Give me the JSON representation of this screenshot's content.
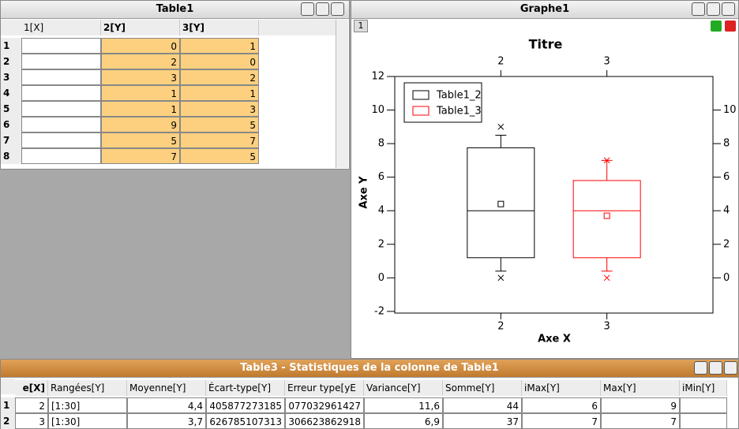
{
  "table1": {
    "title": "Table1",
    "columns": [
      "1[X]",
      "2[Y]",
      "3[Y]"
    ],
    "rows": [
      {
        "label": 1,
        "cells": [
          0,
          1
        ]
      },
      {
        "label": 2,
        "cells": [
          2,
          0
        ]
      },
      {
        "label": 3,
        "cells": [
          3,
          2
        ]
      },
      {
        "label": 4,
        "cells": [
          1,
          1
        ]
      },
      {
        "label": 5,
        "cells": [
          1,
          3
        ]
      },
      {
        "label": 6,
        "cells": [
          9,
          5
        ]
      },
      {
        "label": 7,
        "cells": [
          5,
          7
        ]
      },
      {
        "label": 8,
        "cells": [
          7,
          5
        ]
      }
    ]
  },
  "graph": {
    "title": "Graphe1",
    "tab": "1"
  },
  "chart_data": {
    "type": "box",
    "title": "Titre",
    "x_label": "Axe X",
    "y_label": "Axe Y",
    "x": [
      2,
      3
    ],
    "xlim": [
      1,
      4
    ],
    "xticks": [
      2,
      3
    ],
    "ylim": [
      -2.1,
      12
    ],
    "yticks": [
      -2,
      0,
      2,
      4,
      6,
      8,
      10,
      12
    ],
    "y2lim": [
      -2.1,
      12
    ],
    "y2ticks": [
      0,
      2,
      4,
      6,
      8,
      10
    ],
    "legend": "upper left",
    "series": [
      {
        "name": "Table1_2",
        "color": "#000000",
        "whisker_low": 0.4,
        "q1": 1.2,
        "median": 4,
        "q3": 7.75,
        "whisker_high": 8.5,
        "mean": 4.4,
        "outliers": [
          0,
          9
        ]
      },
      {
        "name": "Table1_3",
        "color": "#ff0000",
        "whisker_low": 0.4,
        "q1": 1.2,
        "median": 4,
        "q3": 5.8,
        "whisker_high": 7,
        "mean": 3.7,
        "outliers": [
          0,
          7
        ]
      }
    ]
  },
  "table3": {
    "title": "Table3 - Statistiques de la colonne de Table1",
    "columns": [
      "e[X]",
      "Rangées[Y]",
      "Moyenne[Y]",
      "Écart-type[Y]",
      "Erreur type[yE",
      "Variance[Y]",
      "Somme[Y]",
      "iMax[Y]",
      "Max[Y]",
      "iMin[Y]"
    ],
    "rows": [
      {
        "label": 1,
        "cells": [
          "2",
          "[1:30]",
          "4,4",
          "405877273185",
          "077032961427",
          "11,6",
          "44",
          "6",
          "9"
        ]
      },
      {
        "label": 2,
        "cells": [
          "3",
          "[1:30]",
          "3,7",
          "626785107313",
          "306623862918",
          "6,9",
          "37",
          "7",
          "7"
        ]
      }
    ]
  }
}
